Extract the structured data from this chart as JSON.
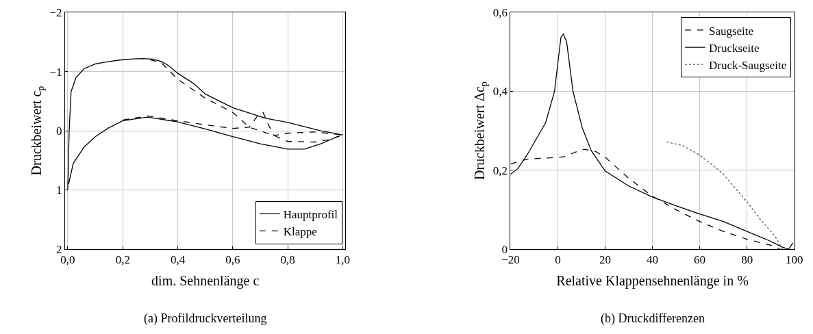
{
  "chart_data": [
    {
      "type": "line",
      "xlabel": "dim. Sehnenlänge c",
      "ylabel": "Druckbeiwert c$_{p}$",
      "annotations": [
        "(a) Profildruckverteilung"
      ],
      "xlim": [
        -0.01,
        1.01
      ],
      "xticks": [
        {
          "value": 0,
          "label": "0,0"
        },
        {
          "value": 0.2,
          "label": "0,2"
        },
        {
          "value": 0.4,
          "label": "0,4"
        },
        {
          "value": 0.6,
          "label": "0,6"
        },
        {
          "value": 0.8,
          "label": "0,8"
        },
        {
          "value": 1,
          "label": "1,0"
        }
      ],
      "ylim": [
        2,
        -2
      ],
      "yticks": [
        {
          "value": -2,
          "label": "−2"
        },
        {
          "value": -1,
          "label": "−1"
        },
        0,
        1,
        2
      ],
      "grid": true,
      "legend": "bottom right",
      "marker": "none",
      "series": [
        {
          "name": "Hauptprofil",
          "color": "#000000",
          "line_style": "solid",
          "x": [
            0,
            0.005,
            0.012,
            0.03,
            0.06,
            0.1,
            0.15,
            0.2,
            0.227,
            0.27,
            0.31,
            0.34,
            0.36,
            0.38,
            0.4,
            0.457,
            0.5,
            0.6,
            0.72,
            0.8,
            0.92,
            1.0,
            null,
            0.003,
            0.02,
            0.06,
            0.1,
            0.145,
            0.2,
            0.29,
            0.4,
            0.5,
            0.6,
            0.7,
            0.8,
            0.86,
            0.92,
            0.99
          ],
          "values": [
            1,
            0,
            -0.66,
            -0.9,
            -1.05,
            -1.13,
            -1.17,
            -1.2,
            -1.21,
            -1.22,
            -1.21,
            -1.17,
            -1.12,
            -1.05,
            -0.97,
            -0.8,
            -0.62,
            -0.39,
            -0.21,
            -0.14,
            0,
            0.07,
            null,
            0.9,
            0.55,
            0.27,
            0.1,
            -0.04,
            -0.17,
            -0.23,
            -0.15,
            -0.03,
            0.1,
            0.22,
            0.31,
            0.31,
            0.22,
            0.08
          ]
        },
        {
          "name": "Klappe",
          "color": "#000000",
          "line_style": "dashed",
          "x": [
            0.3,
            0.34,
            0.4,
            0.5,
            0.6,
            0.66,
            0.75,
            0.8,
            0.9,
            0.95,
            1.0
          ],
          "values": [
            -1.2,
            -1.15,
            -0.87,
            -0.55,
            -0.31,
            -0.06,
            0.08,
            0.18,
            0.19,
            0.15,
            0.07
          ]
        },
        {
          "color": "#000000",
          "line_style": "dashed",
          "x": [
            0.2,
            0.29,
            0.4,
            0.5,
            0.6,
            0.66,
            0.69,
            0.71,
            0.73,
            0.75,
            0.8,
            0.9,
            1.0
          ],
          "values": [
            -0.18,
            -0.25,
            -0.17,
            -0.1,
            -0.04,
            -0.06,
            -0.25,
            -0.31,
            -0.1,
            0.08,
            0.04,
            0.02,
            0.07
          ]
        }
      ]
    },
    {
      "type": "line",
      "xlabel": "Relative Klappensehnenlänge in %",
      "ylabel": "Druckbeiwert Δc$_{p}$",
      "annotations": [
        "(b) Druckdifferenzen"
      ],
      "xlim": [
        -20,
        100
      ],
      "xticks": [
        {
          "value": -20,
          "label": "−20"
        },
        0,
        20,
        40,
        60,
        80,
        100
      ],
      "ylim": [
        0,
        0.6
      ],
      "yticks": [
        0,
        {
          "value": 0.2,
          "label": "0,2"
        },
        {
          "value": 0.4,
          "label": "0,4"
        },
        {
          "value": 0.6,
          "label": "0,6"
        }
      ],
      "grid": true,
      "legend": "top right",
      "marker": "none",
      "series": [
        {
          "name": "Saugseite",
          "color": "#000000",
          "line_style": "dashed",
          "x": [
            -20,
            -13,
            -1.4,
            2.6,
            7,
            11.2,
            16.1,
            20,
            29.7,
            40,
            50,
            60,
            70,
            80,
            90,
            94
          ],
          "values": [
            0.216,
            0.228,
            0.232,
            0.234,
            0.245,
            0.253,
            0.247,
            0.233,
            0.181,
            0.134,
            0.1,
            0.07,
            0.045,
            0.025,
            0.01,
            0
          ]
        },
        {
          "name": "Druckseite",
          "color": "#000000",
          "line_style": "solid",
          "x": [
            -20,
            -16.9,
            -13,
            -5.2,
            -1.4,
            1.3,
            2.3,
            3.7,
            6.4,
            10.3,
            14.1,
            20,
            30,
            40,
            50,
            60,
            70,
            80,
            90,
            95,
            97.6,
            99.4
          ],
          "values": [
            0.19,
            0.204,
            0.239,
            0.32,
            0.4,
            0.537,
            0.545,
            0.526,
            0.4,
            0.308,
            0.25,
            0.198,
            0.16,
            0.132,
            0.11,
            0.089,
            0.07,
            0.045,
            0.02,
            0.005,
            0,
            0.016
          ]
        },
        {
          "name": "Druck-Saugseite",
          "color": "#555555",
          "line_style": "dotted",
          "x": [
            46,
            53,
            59.8,
            65,
            70,
            75,
            80,
            85,
            91.8,
            95
          ],
          "values": [
            0.272,
            0.262,
            0.239,
            0.215,
            0.19,
            0.155,
            0.12,
            0.08,
            0.033,
            0
          ]
        }
      ]
    }
  ]
}
